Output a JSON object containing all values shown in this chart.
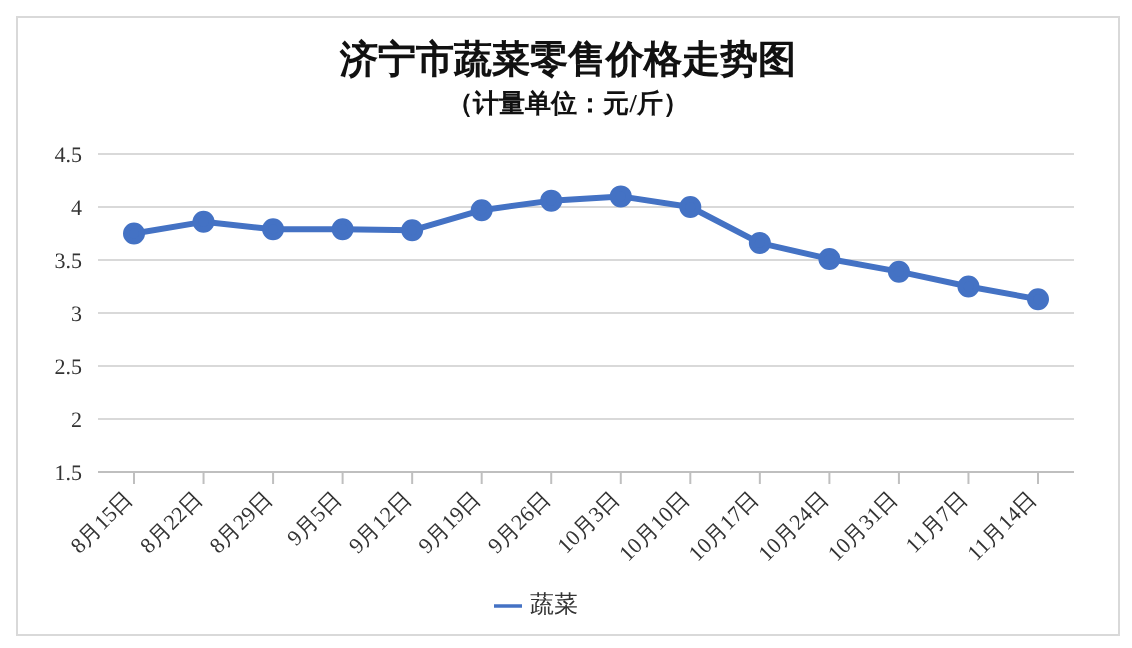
{
  "chart_data": {
    "type": "line",
    "title": "济宁市蔬菜零售价格走势图",
    "subtitle": "（计量单位：元/斤）",
    "categories": [
      "8月15日",
      "8月22日",
      "8月29日",
      "9月5日",
      "9月12日",
      "9月19日",
      "9月26日",
      "10月3日",
      "10月10日",
      "10月17日",
      "10月24日",
      "10月31日",
      "11月7日",
      "11月14日"
    ],
    "series": [
      {
        "name": "蔬菜",
        "color": "#4472c4",
        "values": [
          3.75,
          3.86,
          3.79,
          3.79,
          3.78,
          3.97,
          4.06,
          4.1,
          4.0,
          3.66,
          3.51,
          3.39,
          3.25,
          3.13
        ]
      }
    ],
    "ylim": [
      1.5,
      4.5
    ],
    "yticks": [
      1.5,
      2,
      2.5,
      3,
      3.5,
      4,
      4.5
    ],
    "grid": "y",
    "legend": "bottom",
    "marker": "circle",
    "line_style": "solid"
  }
}
